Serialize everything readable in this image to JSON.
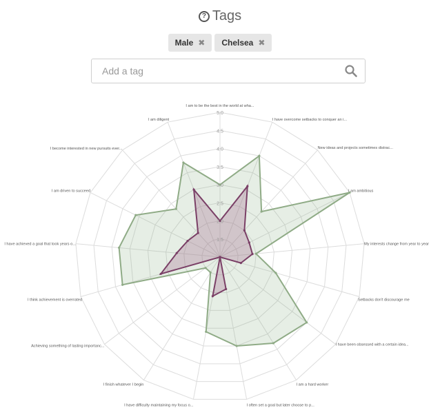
{
  "header": {
    "title": "Tags",
    "icon": "help-circle-icon"
  },
  "tags": [
    {
      "label": "Male"
    },
    {
      "label": "Chelsea"
    }
  ],
  "search": {
    "placeholder": "Add a tag",
    "icon": "search-icon"
  },
  "chart_data": {
    "type": "radar",
    "scale": {
      "min": 1,
      "max": 5,
      "ticks": [
        "1.5",
        "2.0",
        "2.5",
        "3.0",
        "3.5",
        "4.0",
        "4.5",
        "5.0"
      ]
    },
    "axes": [
      "I am to be the best in the world at wha...",
      "I have overcome setbacks to conquer an i...",
      "New ideas and projects sometimes distrac...",
      "I am ambitious",
      "My interests change from year to year",
      "Setbacks don't discourage me",
      "I have been obsessed with a certain idea...",
      "I am a hard worker",
      "I often set a goal but later choose to p...",
      "I have difficulty maintaining my focus o...",
      "I finish whatever I begin",
      "Achieving something of lasting importanc...",
      "I think achievement is overrated",
      "I have achieved a goal that took years o...",
      "I am driven to succeed",
      "I become interested in new pursuits ever...",
      "I am diligent"
    ],
    "series": [
      {
        "values": [
          3.0,
          4.0,
          2.7,
          5.0,
          2.0,
          2.6,
          4.0,
          3.8,
          3.5,
          3.1,
          1.5,
          1.5,
          3.8,
          3.8,
          3.6,
          2.8,
          3.8
        ]
      },
      {
        "values": [
          2.0,
          3.1,
          2.0,
          1.9,
          1.9,
          1.6,
          1.0,
          1.0,
          1.9,
          2.1,
          1.0,
          1.0,
          2.7,
          2.2,
          2.0,
          1.9,
          3.0
        ]
      }
    ],
    "colors": {
      "series0_fill": "#8fb08a",
      "series0_stroke": "#8fab86",
      "series1_fill": "#a3678a",
      "series1_stroke": "#7a3f66",
      "grid": "#dcdcdc"
    },
    "grid": true
  }
}
